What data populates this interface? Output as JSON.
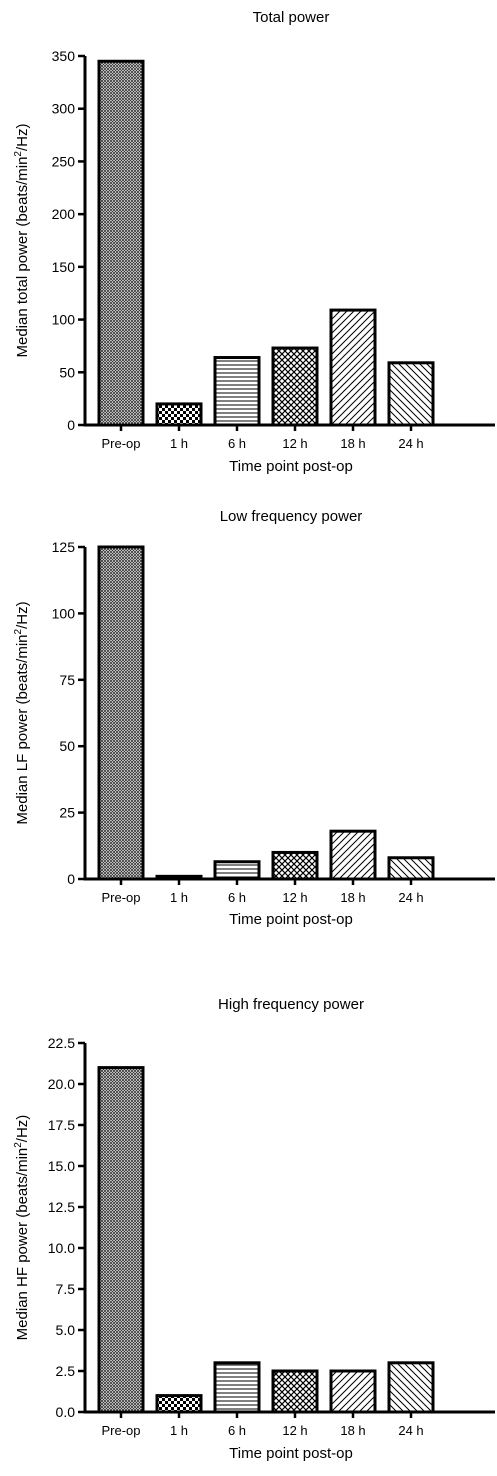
{
  "chart_data": [
    {
      "type": "bar",
      "title": "Total power",
      "xlabel": "Time point post-op",
      "ylabel_main": "Median total power (beats/min",
      "ylabel_sup": "2",
      "ylabel_tail": "/Hz)",
      "categories": [
        "Pre-op",
        "1 h",
        "6 h",
        "12 h",
        "18 h",
        "24 h"
      ],
      "values": [
        345,
        20,
        64,
        73,
        109,
        59
      ],
      "ylim": [
        0,
        350
      ],
      "yticks": [
        0,
        50,
        100,
        150,
        200,
        250,
        300,
        350
      ],
      "ytick_labels": [
        "0",
        "50",
        "100",
        "150",
        "200",
        "250",
        "300",
        "350"
      ],
      "patterns": [
        "dense-crosshatch",
        "checker",
        "horizontal",
        "crosshatch",
        "diagonal-ne",
        "diagonal-nw"
      ]
    },
    {
      "type": "bar",
      "title": "Low frequency power",
      "xlabel": "Time point post-op",
      "ylabel_main": "Median LF power (beats/min",
      "ylabel_sup": "2",
      "ylabel_tail": "/Hz)",
      "categories": [
        "Pre-op",
        "1 h",
        "6 h",
        "12 h",
        "18 h",
        "24 h"
      ],
      "values": [
        125,
        1,
        6.5,
        10,
        18,
        8
      ],
      "ylim": [
        0,
        125
      ],
      "yticks": [
        0,
        25,
        50,
        75,
        100,
        125
      ],
      "ytick_labels": [
        "0",
        "25",
        "50",
        "75",
        "100",
        "125"
      ],
      "patterns": [
        "dense-crosshatch",
        "checker",
        "horizontal",
        "crosshatch",
        "diagonal-ne",
        "diagonal-nw"
      ]
    },
    {
      "type": "bar",
      "title": "High frequency power",
      "xlabel": "Time point post-op",
      "ylabel_main": "Median HF power (beats/min",
      "ylabel_sup": "2",
      "ylabel_tail": "/Hz)",
      "categories": [
        "Pre-op",
        "1 h",
        "6 h",
        "12 h",
        "18 h",
        "24 h"
      ],
      "values": [
        21.0,
        1.0,
        3.0,
        2.5,
        2.5,
        3.0
      ],
      "ylim": [
        0,
        22.5
      ],
      "yticks": [
        0,
        2.5,
        5,
        7.5,
        10,
        12.5,
        15,
        17.5,
        20,
        22.5
      ],
      "ytick_labels": [
        "0.0",
        "2.5",
        "5.0",
        "7.5",
        "10.0",
        "12.5",
        "15.0",
        "17.5",
        "20.0",
        "22.5"
      ],
      "patterns": [
        "dense-crosshatch",
        "checker",
        "horizontal",
        "crosshatch",
        "diagonal-ne",
        "diagonal-nw"
      ]
    }
  ]
}
